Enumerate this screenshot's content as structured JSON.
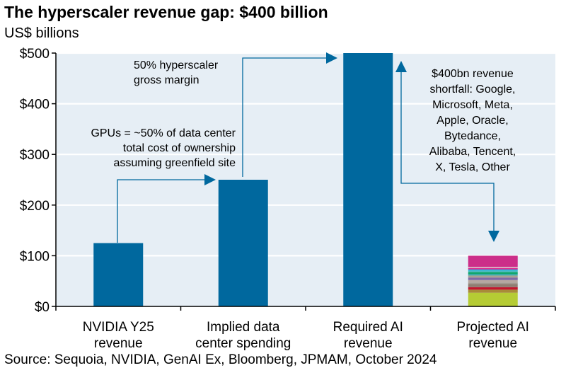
{
  "title": "The hyperscaler revenue gap: $400 billion",
  "subtitle": "US$ billions",
  "source": "Source: Sequoia, NVIDIA, GenAI Ex, Bloomberg, JPMAM, October 2024",
  "colors": {
    "bar": "#00689E",
    "plot_bg": "#E6EEF5",
    "gridline": "#ffffff",
    "arrow": "#00689E"
  },
  "chart_data": {
    "type": "bar",
    "title": "The hyperscaler revenue gap: $400 billion",
    "ylabel": "US$ billions",
    "ylim": [
      0,
      500
    ],
    "yticks": [
      0,
      100,
      200,
      300,
      400,
      500
    ],
    "ytick_labels": [
      "$0",
      "$100",
      "$200",
      "$300",
      "$400",
      "$500"
    ],
    "grid": true,
    "categories": [
      [
        "NVIDIA Y25",
        "revenue"
      ],
      [
        "Implied data",
        "center spending"
      ],
      [
        "Required AI",
        "revenue"
      ],
      [
        "Projected AI",
        "revenue"
      ]
    ],
    "values": [
      125,
      250,
      500,
      null
    ],
    "stacked_last_bar": {
      "total": 100,
      "segments": [
        {
          "value": 27,
          "color": "#B5CC34"
        },
        {
          "value": 6,
          "color": "#A88C38"
        },
        {
          "value": 5,
          "color": "#C2172E"
        },
        {
          "value": 6,
          "color": "#8F7E72"
        },
        {
          "value": 3,
          "color": "#A39A91"
        },
        {
          "value": 5,
          "color": "#B7A7A0"
        },
        {
          "value": 5,
          "color": "#7F6AA6"
        },
        {
          "value": 4,
          "color": "#A8A292"
        },
        {
          "value": 3,
          "color": "#2EA8A6"
        },
        {
          "value": 4,
          "color": "#12A66E"
        },
        {
          "value": 3,
          "color": "#4DBCC5"
        },
        {
          "value": 2,
          "color": "#00A3E0"
        },
        {
          "value": 3,
          "color": "#E0258E"
        },
        {
          "value": 2,
          "color": "#D9D3CC"
        },
        {
          "value": 22,
          "color": "#CC2E89"
        }
      ]
    },
    "annotations": [
      {
        "name": "gpu-annotation",
        "lines": [
          "GPUs = ~50% of data center",
          "total cost of ownership",
          "assuming greenfield site"
        ]
      },
      {
        "name": "margin-annotation",
        "lines": [
          "50% hyperscaler",
          "gross margin"
        ]
      },
      {
        "name": "shortfall-annotation",
        "lines": [
          "$400bn revenue",
          "shortfall: Google,",
          "Microsoft, Meta,",
          "Apple, Oracle,",
          "Bytedance,",
          "Alibaba, Tencent,",
          "X, Tesla, Other"
        ]
      }
    ]
  }
}
